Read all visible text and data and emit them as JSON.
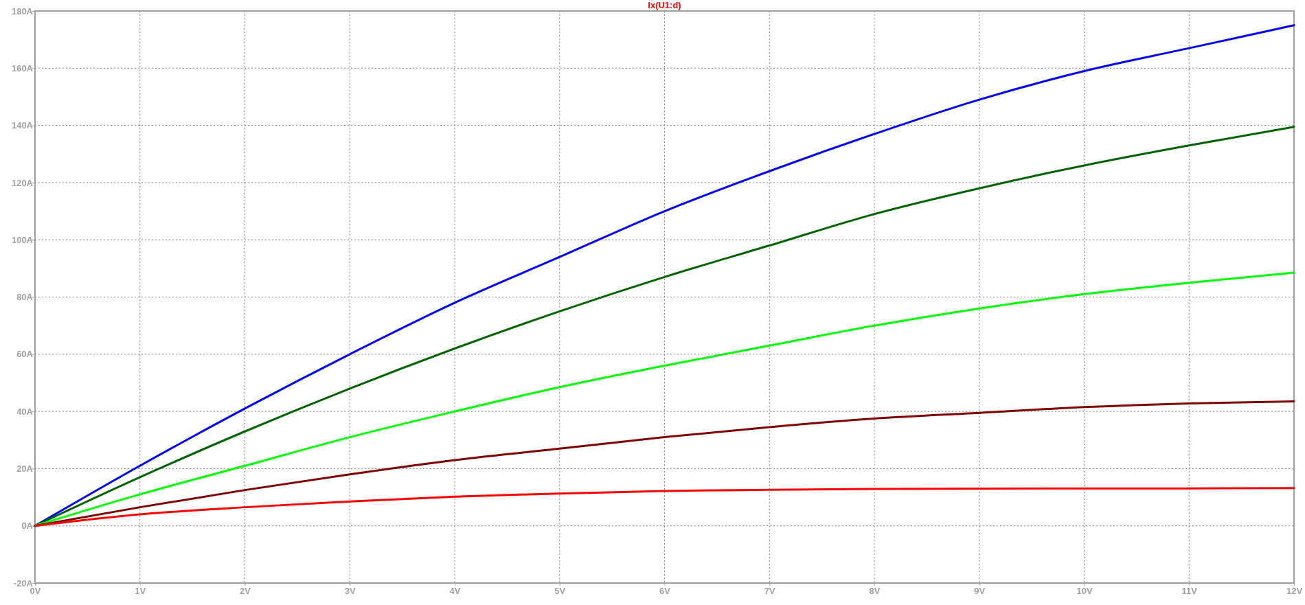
{
  "chart_data": {
    "type": "line",
    "title": "Ix(U1:d)",
    "x": [
      0,
      1,
      2,
      3,
      4,
      5,
      6,
      7,
      8,
      9,
      10,
      11,
      12
    ],
    "series": [
      {
        "color": "#0000ff",
        "values": [
          0,
          21,
          41,
          60,
          78,
          94,
          110,
          124,
          137,
          149,
          159,
          167,
          175
        ]
      },
      {
        "color": "#006400",
        "values": [
          0,
          17,
          33,
          48,
          62,
          75,
          87,
          98,
          109,
          118,
          126,
          133,
          139.5
        ]
      },
      {
        "color": "#00ff00",
        "values": [
          0,
          11,
          21,
          31,
          40,
          48.5,
          56,
          63,
          70,
          76,
          81,
          85,
          88.5
        ]
      },
      {
        "color": "#800000",
        "values": [
          0,
          6.5,
          12.5,
          18,
          23,
          27,
          31,
          34.5,
          37.5,
          39.5,
          41.5,
          42.8,
          43.5
        ]
      },
      {
        "color": "#ff0000",
        "values": [
          0,
          4,
          6.5,
          8.5,
          10.2,
          11.3,
          12.2,
          12.6,
          12.9,
          13,
          13.1,
          13.1,
          13.2
        ]
      }
    ],
    "xlim": [
      0,
      12
    ],
    "xticks": [
      {
        "value": 0,
        "label": "0V"
      },
      {
        "value": 1,
        "label": "1V"
      },
      {
        "value": 2,
        "label": "2V"
      },
      {
        "value": 3,
        "label": "3V"
      },
      {
        "value": 4,
        "label": "4V"
      },
      {
        "value": 5,
        "label": "5V"
      },
      {
        "value": 6,
        "label": "6V"
      },
      {
        "value": 7,
        "label": "7V"
      },
      {
        "value": 8,
        "label": "8V"
      },
      {
        "value": 9,
        "label": "9V"
      },
      {
        "value": 10,
        "label": "10V"
      },
      {
        "value": 11,
        "label": "11V"
      },
      {
        "value": 12,
        "label": "12V"
      }
    ],
    "ylim": [
      -20,
      180
    ],
    "yticks": [
      {
        "value": -20,
        "label": "-20A"
      },
      {
        "value": 0,
        "label": "0A"
      },
      {
        "value": 20,
        "label": "20A"
      },
      {
        "value": 40,
        "label": "40A"
      },
      {
        "value": 60,
        "label": "60A"
      },
      {
        "value": 80,
        "label": "80A"
      },
      {
        "value": 100,
        "label": "100A"
      },
      {
        "value": 120,
        "label": "120A"
      },
      {
        "value": 140,
        "label": "140A"
      },
      {
        "value": 160,
        "label": "160A"
      },
      {
        "value": 180,
        "label": "180A"
      }
    ],
    "grid": true,
    "marker": "none",
    "line_style": "solid"
  }
}
